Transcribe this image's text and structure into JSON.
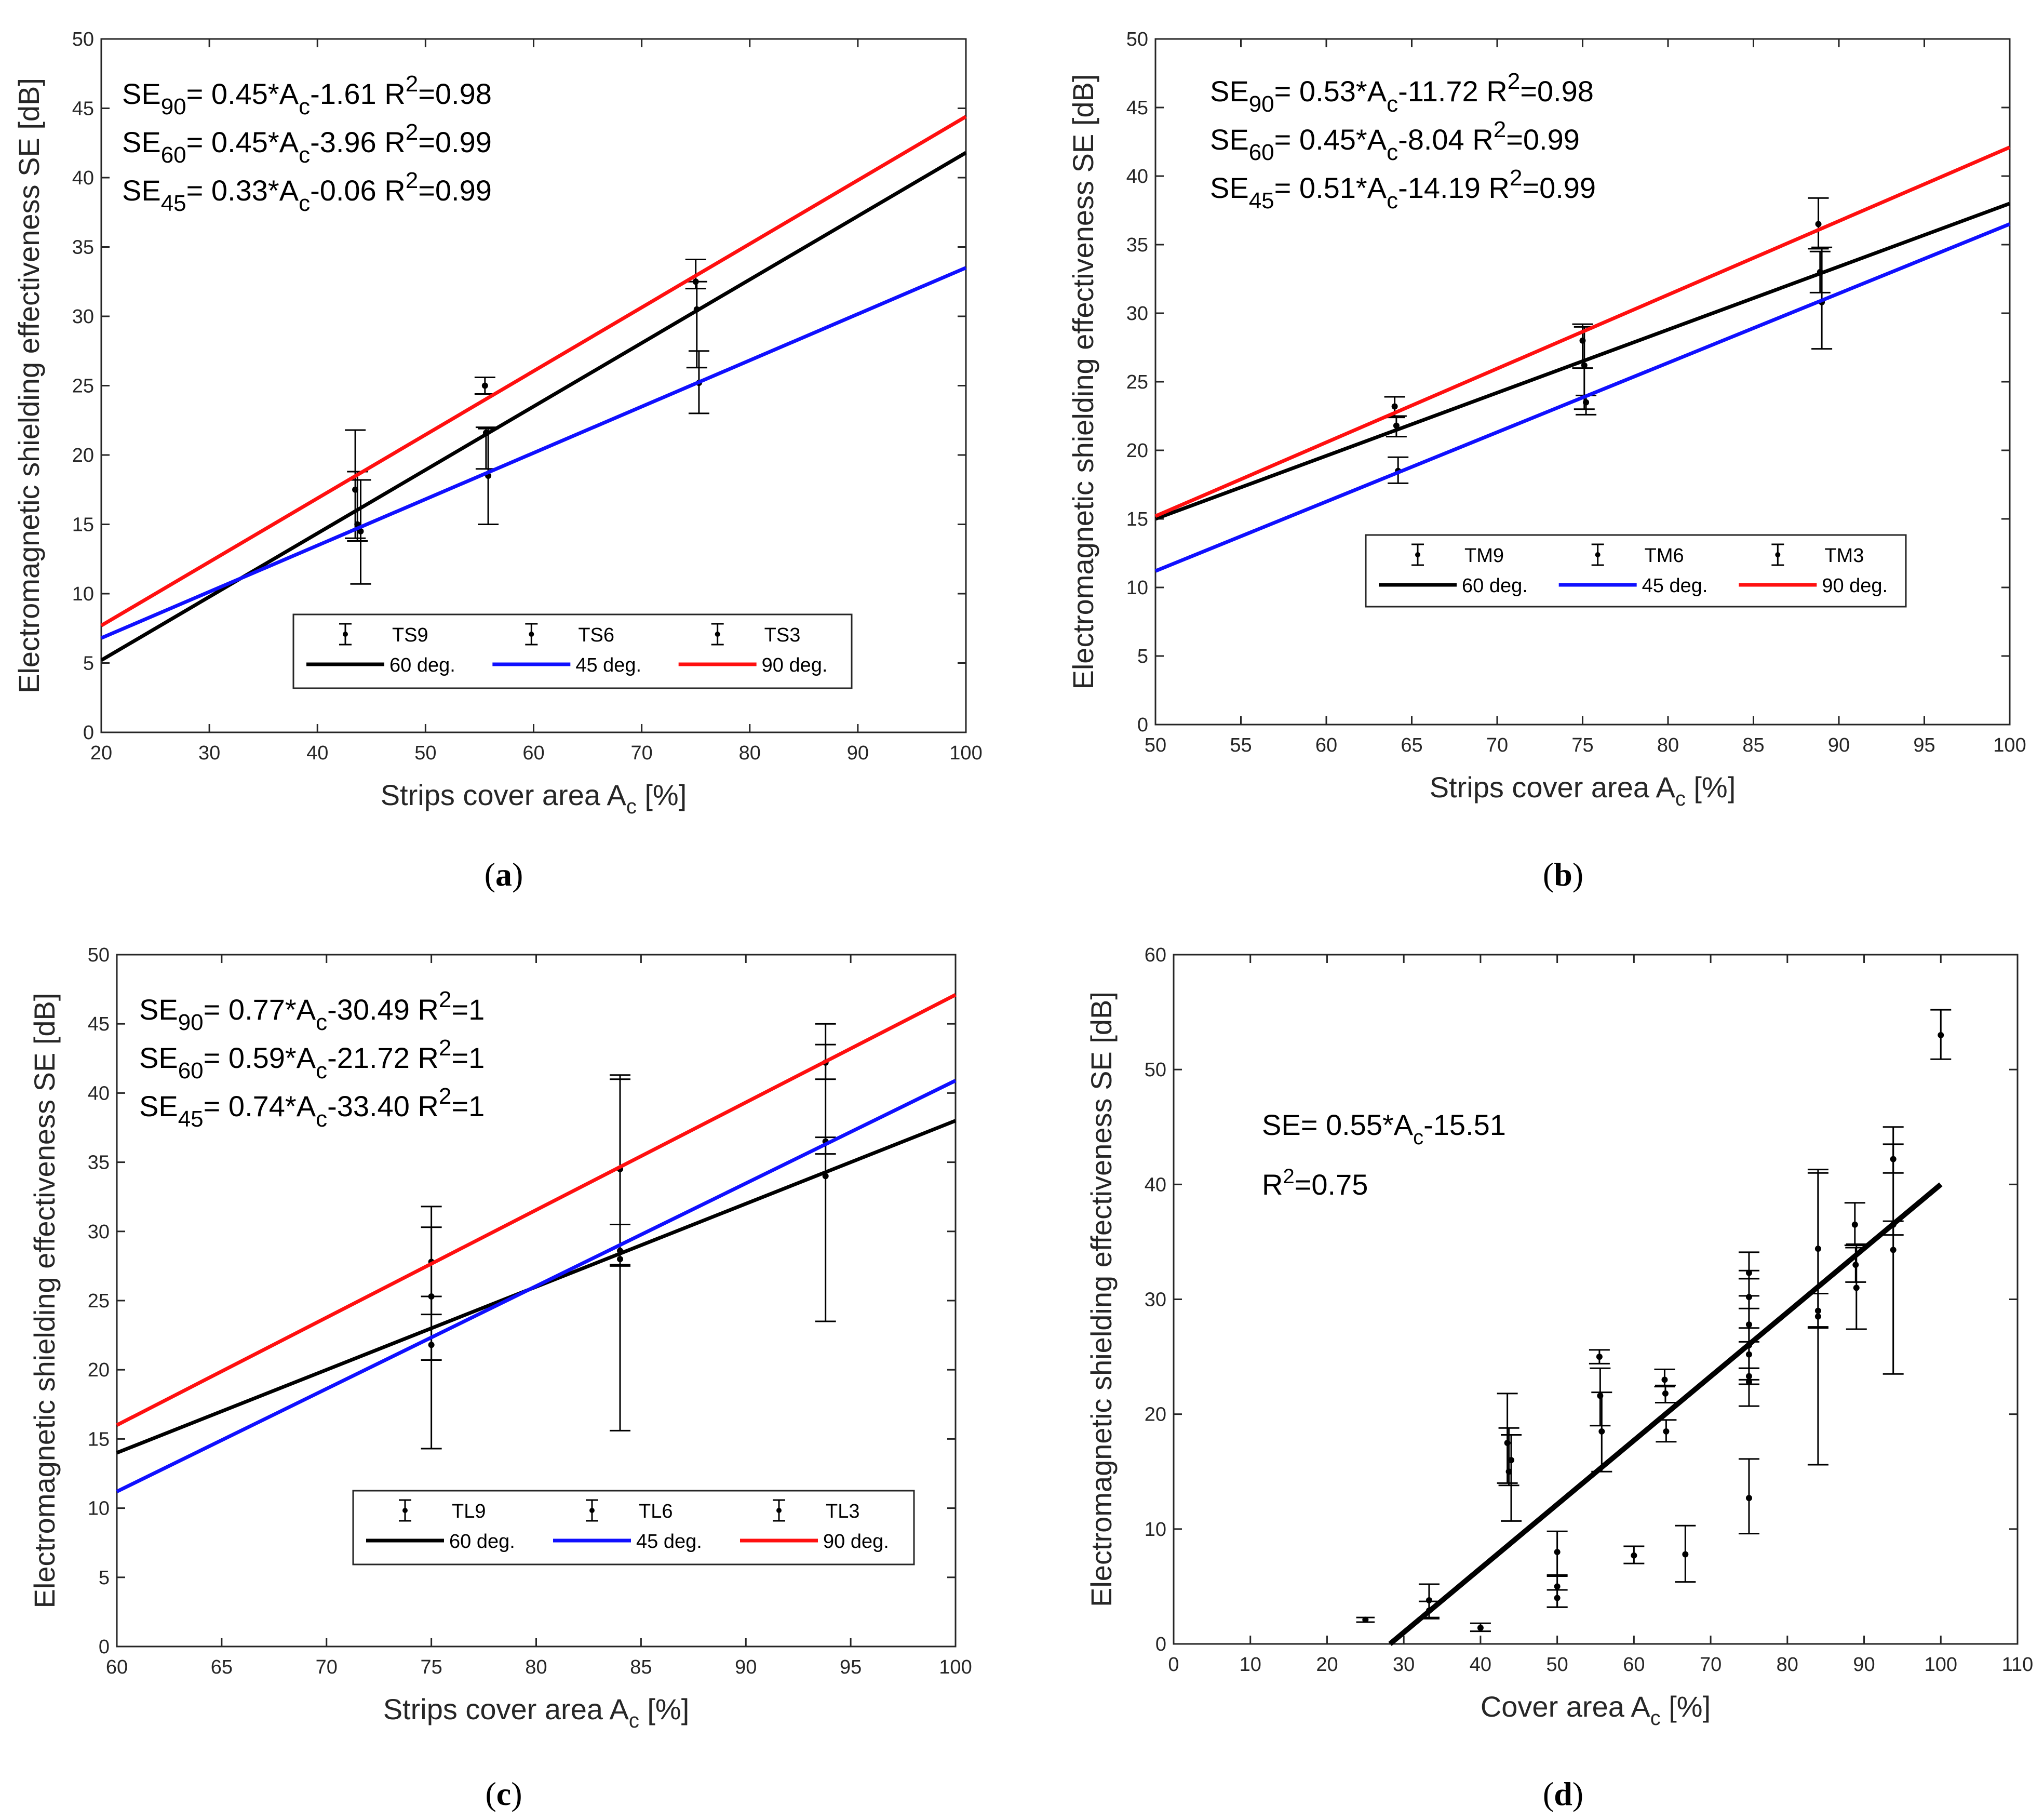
{
  "chart_data": [
    {
      "type": "line",
      "caption": "a",
      "xlabel": "Strips cover area A",
      "xlabel_sub": "c",
      "xlabel_unit": " [%]",
      "ylabel": "Electromagnetic shielding effectiveness SE [dB]",
      "xlim": [
        20,
        100
      ],
      "ylim": [
        0,
        50
      ],
      "xticks": [
        20,
        30,
        40,
        50,
        60,
        70,
        80,
        90,
        100
      ],
      "yticks": [
        0,
        5,
        10,
        15,
        20,
        25,
        30,
        35,
        40,
        45,
        50
      ],
      "equations": [
        {
          "pre": "SE",
          "sub": "90",
          "mid": "= 0.45*A",
          "sub2": "c",
          "post": "-1.61",
          "r": "R",
          "sup": "2",
          "rval": "=0.98"
        },
        {
          "pre": "SE",
          "sub": "60",
          "mid": "= 0.45*A",
          "sub2": "c",
          "post": "-3.96",
          "r": "R",
          "sup": "2",
          "rval": "=0.99"
        },
        {
          "pre": "SE",
          "sub": "45",
          "mid": "= 0.33*A",
          "sub2": "c",
          "post": "-0.06",
          "r": "R",
          "sup": "2",
          "rval": "=0.99"
        }
      ],
      "lines": [
        {
          "name": "60 deg.",
          "color": "#000000",
          "y_at_xmin": 5.2,
          "y_at_xmax": 41.8
        },
        {
          "name": "45 deg.",
          "color": "#1010ff",
          "y_at_xmin": 6.8,
          "y_at_xmax": 33.5
        },
        {
          "name": "90 deg.",
          "color": "#ff1010",
          "y_at_xmin": 7.7,
          "y_at_xmax": 44.4
        }
      ],
      "errorbars": [
        {
          "x": 43.5,
          "y": 17.5,
          "lo": 14.0,
          "hi": 21.8
        },
        {
          "x": 43.7,
          "y": 15.0,
          "lo": 13.8,
          "hi": 18.8
        },
        {
          "x": 44.0,
          "y": 14.5,
          "lo": 10.7,
          "hi": 18.2
        },
        {
          "x": 55.5,
          "y": 25.0,
          "lo": 24.4,
          "hi": 25.6
        },
        {
          "x": 55.6,
          "y": 21.6,
          "lo": 19.0,
          "hi": 22.0
        },
        {
          "x": 55.8,
          "y": 18.5,
          "lo": 15.0,
          "hi": 21.9
        },
        {
          "x": 75.0,
          "y": 32.5,
          "lo": 32.0,
          "hi": 34.1
        },
        {
          "x": 75.1,
          "y": 30.5,
          "lo": 26.3,
          "hi": 32.5
        },
        {
          "x": 75.3,
          "y": 25.2,
          "lo": 23.0,
          "hi": 27.5
        }
      ],
      "legend": {
        "markers": [
          "TS9",
          "TS6",
          "TS3"
        ],
        "lines": [
          "60 deg.",
          "45 deg.",
          "90 deg."
        ],
        "placement": "bottom-center"
      }
    },
    {
      "type": "line",
      "caption": "b",
      "xlabel": "Strips cover area A",
      "xlabel_sub": "c",
      "xlabel_unit": " [%]",
      "ylabel": "Electromagnetic shielding effectiveness SE [dB]",
      "xlim": [
        50,
        100
      ],
      "ylim": [
        0,
        50
      ],
      "xticks": [
        50,
        55,
        60,
        65,
        70,
        75,
        80,
        85,
        90,
        95,
        100
      ],
      "yticks": [
        0,
        5,
        10,
        15,
        20,
        25,
        30,
        35,
        40,
        45,
        50
      ],
      "equations": [
        {
          "pre": "SE",
          "sub": "90",
          "mid": "= 0.53*A",
          "sub2": "c",
          "post": "-11.72",
          "r": "R",
          "sup": "2",
          "rval": "=0.98"
        },
        {
          "pre": "SE",
          "sub": "60",
          "mid": "= 0.45*A",
          "sub2": "c",
          "post": "-8.04",
          "r": "R",
          "sup": "2",
          "rval": "=0.99"
        },
        {
          "pre": "SE",
          "sub": "45",
          "mid": "= 0.51*A",
          "sub2": "c",
          "post": "-14.19",
          "r": "R",
          "sup": "2",
          "rval": "=0.99"
        }
      ],
      "lines": [
        {
          "name": "60 deg.",
          "color": "#000000",
          "y_at_xmin": 15.0,
          "y_at_xmax": 38.0
        },
        {
          "name": "45 deg.",
          "color": "#1010ff",
          "y_at_xmin": 11.2,
          "y_at_xmax": 36.5
        },
        {
          "name": "90 deg.",
          "color": "#ff1010",
          "y_at_xmin": 15.2,
          "y_at_xmax": 42.1
        }
      ],
      "errorbars": [
        {
          "x": 64.0,
          "y": 23.2,
          "lo": 22.4,
          "hi": 23.9
        },
        {
          "x": 64.1,
          "y": 21.8,
          "lo": 21.0,
          "hi": 22.5
        },
        {
          "x": 64.2,
          "y": 18.5,
          "lo": 17.6,
          "hi": 19.5
        },
        {
          "x": 75.0,
          "y": 28.0,
          "lo": 26.0,
          "hi": 29.2
        },
        {
          "x": 75.1,
          "y": 26.2,
          "lo": 23.0,
          "hi": 29.0
        },
        {
          "x": 75.2,
          "y": 23.5,
          "lo": 22.6,
          "hi": 24.0
        },
        {
          "x": 88.8,
          "y": 36.5,
          "lo": 34.7,
          "hi": 38.4
        },
        {
          "x": 88.9,
          "y": 33.0,
          "lo": 31.5,
          "hi": 34.5
        },
        {
          "x": 89.0,
          "y": 30.8,
          "lo": 27.4,
          "hi": 34.8
        }
      ],
      "legend": {
        "markers": [
          "TM9",
          "TM6",
          "TM3"
        ],
        "lines": [
          "60 deg.",
          "45 deg.",
          "90 deg."
        ],
        "placement": "bottom-center"
      }
    },
    {
      "type": "line",
      "caption": "c",
      "xlabel": "Strips cover area A",
      "xlabel_sub": "c",
      "xlabel_unit": " [%]",
      "ylabel": "Electromagnetic shielding effectiveness SE [dB]",
      "xlim": [
        60,
        100
      ],
      "ylim": [
        0,
        50
      ],
      "xticks": [
        60,
        65,
        70,
        75,
        80,
        85,
        90,
        95,
        100
      ],
      "yticks": [
        0,
        5,
        10,
        15,
        20,
        25,
        30,
        35,
        40,
        45,
        50
      ],
      "equations": [
        {
          "pre": "SE",
          "sub": "90",
          "mid": "= 0.77*A",
          "sub2": "c",
          "post": "-30.49",
          "r": "R",
          "sup": "2",
          "rval": "=1"
        },
        {
          "pre": "SE",
          "sub": "60",
          "mid": "= 0.59*A",
          "sub2": "c",
          "post": "-21.72",
          "r": "R",
          "sup": "2",
          "rval": "=1"
        },
        {
          "pre": "SE",
          "sub": "45",
          "mid": "= 0.74*A",
          "sub2": "c",
          "post": "-33.40",
          "r": "R",
          "sup": "2",
          "rval": "=1"
        }
      ],
      "lines": [
        {
          "name": "60 deg.",
          "color": "#000000",
          "y_at_xmin": 14.0,
          "y_at_xmax": 38.0
        },
        {
          "name": "45 deg.",
          "color": "#1010ff",
          "y_at_xmin": 11.2,
          "y_at_xmax": 40.9
        },
        {
          "name": "90 deg.",
          "color": "#ff1010",
          "y_at_xmin": 16.0,
          "y_at_xmax": 47.1
        }
      ],
      "errorbars": [
        {
          "x": 75.0,
          "y": 27.8,
          "lo": 24.0,
          "hi": 31.8
        },
        {
          "x": 75.0,
          "y": 25.3,
          "lo": 20.7,
          "hi": 30.3
        },
        {
          "x": 75.0,
          "y": 21.8,
          "lo": 14.3,
          "hi": 25.3
        },
        {
          "x": 84.0,
          "y": 34.5,
          "lo": 27.5,
          "hi": 41.3
        },
        {
          "x": 84.0,
          "y": 28.6,
          "lo": 15.6,
          "hi": 41.0
        },
        {
          "x": 84.0,
          "y": 28.0,
          "lo": 27.6,
          "hi": 30.5
        },
        {
          "x": 93.8,
          "y": 42.2,
          "lo": 41.0,
          "hi": 45.0
        },
        {
          "x": 93.8,
          "y": 36.5,
          "lo": 35.6,
          "hi": 43.5
        },
        {
          "x": 93.8,
          "y": 34.0,
          "lo": 23.5,
          "hi": 36.8
        }
      ],
      "legend": {
        "markers": [
          "TL9",
          "TL6",
          "TL3"
        ],
        "lines": [
          "60 deg.",
          "45 deg.",
          "90 deg."
        ],
        "placement": "bottom-center"
      }
    },
    {
      "type": "scatter",
      "caption": "d",
      "xlabel": "Cover area A",
      "xlabel_sub": "c",
      "xlabel_unit": " [%]",
      "ylabel": "Electromagnetic shielding effectiveness SE [dB]",
      "xlim": [
        0,
        110
      ],
      "ylim": [
        0,
        60
      ],
      "xticks": [
        0,
        10,
        20,
        30,
        40,
        50,
        60,
        70,
        80,
        90,
        100,
        110
      ],
      "yticks": [
        0,
        10,
        20,
        30,
        40,
        50,
        60
      ],
      "equation": {
        "pre": "SE= 0.55*A",
        "sub": "c",
        "post": "-15.51"
      },
      "r2": {
        "r": "R",
        "sup": "2",
        "rval": "=0.75"
      },
      "fit": {
        "x": [
          28.2,
          100
        ],
        "y": [
          0,
          40.0
        ]
      },
      "errorbars": [
        {
          "x": 25.0,
          "y": 2.1,
          "lo": 1.9,
          "hi": 2.3,
          "w": 2.4
        },
        {
          "x": 33.3,
          "y": 3.8,
          "lo": 2.3,
          "hi": 5.2
        },
        {
          "x": 33.3,
          "y": 2.9,
          "lo": 2.2,
          "hi": 3.7
        },
        {
          "x": 40.0,
          "y": 1.4,
          "lo": 1.1,
          "hi": 1.8
        },
        {
          "x": 43.5,
          "y": 17.5,
          "lo": 14.0,
          "hi": 21.8
        },
        {
          "x": 43.7,
          "y": 15.0,
          "lo": 13.8,
          "hi": 18.8
        },
        {
          "x": 44.0,
          "y": 16.0,
          "lo": 10.7,
          "hi": 18.2
        },
        {
          "x": 50.0,
          "y": 8.0,
          "lo": 6.0,
          "hi": 9.8
        },
        {
          "x": 50.0,
          "y": 5.0,
          "lo": 3.2,
          "hi": 5.9
        },
        {
          "x": 50.0,
          "y": 4.0,
          "lo": 3.2,
          "hi": 4.7
        },
        {
          "x": 55.5,
          "y": 25.0,
          "lo": 24.4,
          "hi": 25.6
        },
        {
          "x": 55.6,
          "y": 21.6,
          "lo": 19.0,
          "hi": 24.0
        },
        {
          "x": 55.8,
          "y": 18.5,
          "lo": 15.0,
          "hi": 21.9
        },
        {
          "x": 60.0,
          "y": 7.7,
          "lo": 7.0,
          "hi": 8.5
        },
        {
          "x": 64.0,
          "y": 23.0,
          "lo": 22.4,
          "hi": 23.9
        },
        {
          "x": 64.1,
          "y": 21.8,
          "lo": 21.0,
          "hi": 22.5
        },
        {
          "x": 64.2,
          "y": 18.5,
          "lo": 17.6,
          "hi": 19.5
        },
        {
          "x": 66.7,
          "y": 7.8,
          "lo": 5.4,
          "hi": 10.3
        },
        {
          "x": 75.0,
          "y": 32.3,
          "lo": 31.8,
          "hi": 34.1
        },
        {
          "x": 75.0,
          "y": 30.2,
          "lo": 26.3,
          "hi": 32.5
        },
        {
          "x": 75.0,
          "y": 27.8,
          "lo": 24.0,
          "hi": 31.8
        },
        {
          "x": 75.0,
          "y": 26.0,
          "lo": 23.0,
          "hi": 29.2
        },
        {
          "x": 75.0,
          "y": 25.2,
          "lo": 22.6,
          "hi": 27.5
        },
        {
          "x": 75.0,
          "y": 23.3,
          "lo": 20.7,
          "hi": 30.3
        },
        {
          "x": 75.0,
          "y": 22.8,
          "lo": 22.6,
          "hi": 24.0
        },
        {
          "x": 75.0,
          "y": 12.7,
          "lo": 9.6,
          "hi": 16.1
        },
        {
          "x": 84.0,
          "y": 34.4,
          "lo": 27.5,
          "hi": 41.3
        },
        {
          "x": 84.0,
          "y": 29.0,
          "lo": 15.6,
          "hi": 41.0
        },
        {
          "x": 84.0,
          "y": 28.5,
          "lo": 27.6,
          "hi": 30.5
        },
        {
          "x": 88.8,
          "y": 36.5,
          "lo": 34.7,
          "hi": 38.4
        },
        {
          "x": 88.9,
          "y": 33.0,
          "lo": 31.5,
          "hi": 34.5
        },
        {
          "x": 89.0,
          "y": 31.0,
          "lo": 27.4,
          "hi": 34.8
        },
        {
          "x": 93.8,
          "y": 42.2,
          "lo": 41.0,
          "hi": 45.0
        },
        {
          "x": 93.8,
          "y": 36.5,
          "lo": 35.6,
          "hi": 43.5
        },
        {
          "x": 93.8,
          "y": 34.3,
          "lo": 23.5,
          "hi": 36.8
        },
        {
          "x": 100.0,
          "y": 53.0,
          "lo": 50.9,
          "hi": 55.2
        }
      ]
    }
  ]
}
